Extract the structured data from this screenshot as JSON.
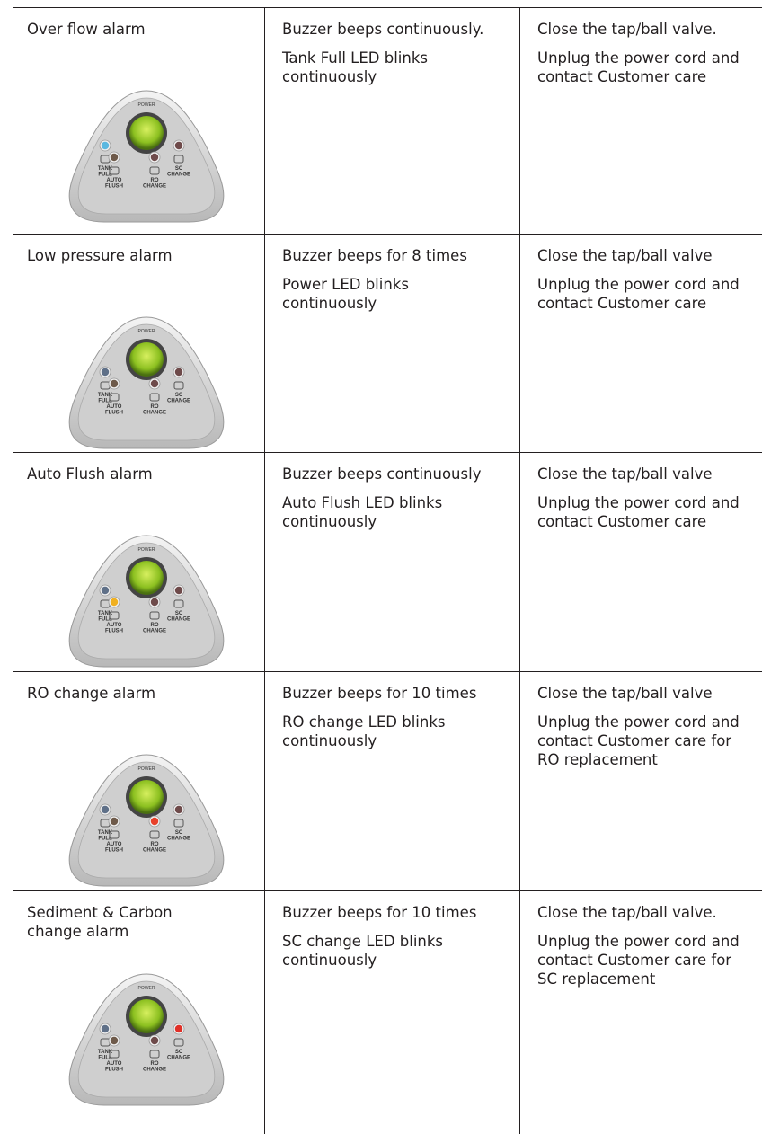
{
  "panel_labels": {
    "power": "POWER",
    "leds": [
      [
        "TANK",
        "FULL"
      ],
      [
        "AUTO",
        "FLUSH"
      ],
      [
        "RO",
        "CHANGE"
      ],
      [
        "SC",
        "CHANGE"
      ]
    ]
  },
  "table": {
    "rows": [
      {
        "alarm": "Over flow alarm",
        "indications": [
          "Buzzer beeps continuously.",
          "Tank Full LED blinks continuously"
        ],
        "actions": [
          "Close the tap/ball valve.",
          "Unplug the power cord and contact Customer care"
        ],
        "led_colors": [
          "#5ab8e0",
          "#6e5a4a",
          "#6e4a4a",
          "#6e4a4a"
        ]
      },
      {
        "alarm": "Low pressure alarm",
        "indications": [
          "Buzzer beeps for 8 times",
          "Power LED blinks continuously"
        ],
        "actions": [
          "Close the tap/ball valve",
          "Unplug the power cord and contact Customer care"
        ],
        "led_colors": [
          "#5f7088",
          "#6e5a4a",
          "#6e4a4a",
          "#6e4a4a"
        ]
      },
      {
        "alarm": "Auto Flush alarm",
        "indications": [
          "Buzzer beeps continuously",
          "Auto Flush LED blinks continuously"
        ],
        "actions": [
          "Close the tap/ball valve",
          "Unplug the power cord and contact Customer care"
        ],
        "led_colors": [
          "#5f7088",
          "#f0b020",
          "#6e4a4a",
          "#6e4a4a"
        ]
      },
      {
        "alarm": "RO change alarm",
        "indications": [
          "Buzzer beeps for 10 times",
          "RO change LED blinks continuously"
        ],
        "actions": [
          "Close the tap/ball valve",
          "Unplug the power cord and contact Customer care for RO replacement"
        ],
        "led_colors": [
          "#5f7088",
          "#6e5a4a",
          "#e8402a",
          "#6e4a4a"
        ]
      },
      {
        "alarm": "Sediment & Carbon change alarm",
        "indications": [
          "Buzzer beeps for 10 times",
          "SC change LED blinks continuously"
        ],
        "actions": [
          "Close the tap/ball valve.",
          "Unplug the power cord and contact Customer care for SC replacement"
        ],
        "led_colors": [
          "#5f7088",
          "#6e5a4a",
          "#6e4a4a",
          "#e03028"
        ]
      }
    ]
  }
}
